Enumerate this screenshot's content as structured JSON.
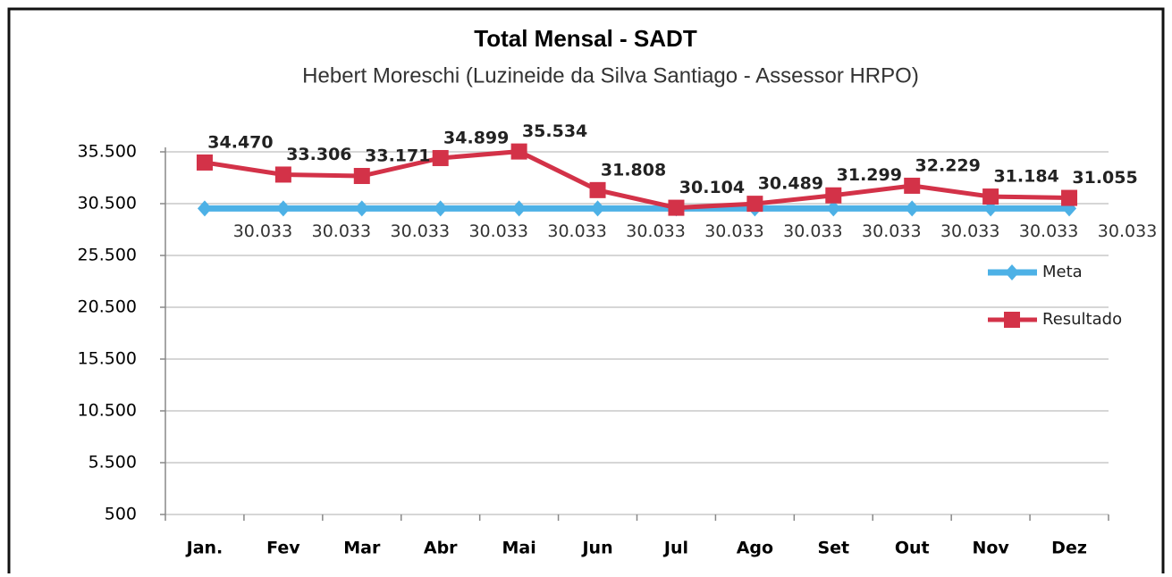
{
  "chart_data": {
    "type": "line",
    "title": "Total Mensal - SADT",
    "subtitle": "Hebert Moreschi (Luzineide da Silva Santiago - Assessor HRPO)",
    "categories": [
      "Jan.",
      "Fev",
      "Mar",
      "Abr",
      "Mai",
      "Jun",
      "Jul",
      "Ago",
      "Set",
      "Out",
      "Nov",
      "Dez"
    ],
    "series": [
      {
        "name": "Meta",
        "color": "#4db1e6",
        "values": [
          30033,
          30033,
          30033,
          30033,
          30033,
          30033,
          30033,
          30033,
          30033,
          30033,
          30033,
          30033
        ],
        "value_labels": [
          "30.033",
          "30.033",
          "30.033",
          "30.033",
          "30.033",
          "30.033",
          "30.033",
          "30.033",
          "30.033",
          "30.033",
          "30.033",
          "30.033"
        ]
      },
      {
        "name": "Resultado",
        "color": "#d33248",
        "values": [
          34470,
          33306,
          33171,
          34899,
          35534,
          31808,
          30104,
          30489,
          31299,
          32229,
          31184,
          31055
        ],
        "value_labels": [
          "34.470",
          "33.306",
          "33.171",
          "34.899",
          "35.534",
          "31.808",
          "30.104",
          "30.489",
          "31.299",
          "32.229",
          "31.184",
          "31.055"
        ]
      }
    ],
    "ylim": [
      500,
      35500
    ],
    "yticks": [
      {
        "value": 500,
        "label": "500"
      },
      {
        "value": 5500,
        "label": "5.500"
      },
      {
        "value": 10500,
        "label": "10.500"
      },
      {
        "value": 15500,
        "label": "15.500"
      },
      {
        "value": 20500,
        "label": "20.500"
      },
      {
        "value": 25500,
        "label": "25.500"
      },
      {
        "value": 30500,
        "label": "30.500"
      },
      {
        "value": 35500,
        "label": "35.500"
      }
    ],
    "grid": true,
    "legend": "right"
  }
}
